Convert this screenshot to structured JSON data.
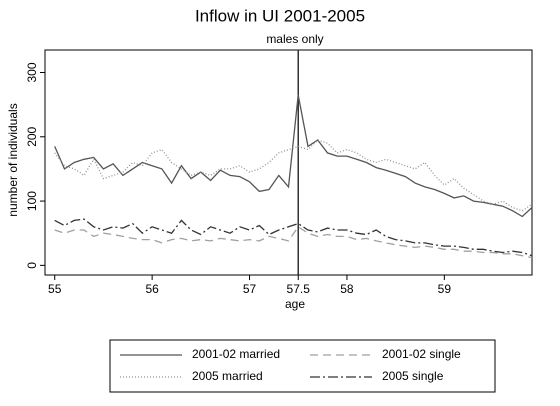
{
  "chart_data": {
    "type": "line",
    "title": "Inflow in UI 2001-2005",
    "subtitle": "males only",
    "x_label": "age",
    "y_label": "number of individuals",
    "x": [
      55.0,
      55.1,
      55.2,
      55.3,
      55.4,
      55.5,
      55.6,
      55.7,
      55.8,
      55.9,
      56.0,
      56.1,
      56.2,
      56.3,
      56.4,
      56.5,
      56.6,
      56.7,
      56.8,
      56.9,
      57.0,
      57.1,
      57.2,
      57.3,
      57.4,
      57.5,
      57.6,
      57.7,
      57.8,
      57.9,
      58.0,
      58.1,
      58.2,
      58.3,
      58.4,
      58.5,
      58.6,
      58.7,
      58.8,
      58.9,
      59.0,
      59.1,
      59.2,
      59.3,
      59.4,
      59.5,
      59.6,
      59.7,
      59.8,
      59.9
    ],
    "series": [
      {
        "name": "2001-02 married",
        "color": "#555555",
        "dash": "none",
        "values": [
          185,
          150,
          160,
          165,
          168,
          150,
          158,
          140,
          150,
          160,
          155,
          150,
          128,
          155,
          135,
          145,
          132,
          148,
          140,
          138,
          130,
          115,
          118,
          140,
          122,
          265,
          185,
          195,
          175,
          170,
          170,
          165,
          160,
          152,
          148,
          143,
          138,
          128,
          122,
          118,
          112,
          105,
          108,
          100,
          98,
          95,
          92,
          85,
          76,
          90
        ]
      },
      {
        "name": "2001-02 single",
        "color": "#a0a0a0",
        "dash": "8,5",
        "values": [
          55,
          50,
          55,
          55,
          45,
          50,
          48,
          45,
          42,
          40,
          40,
          35,
          40,
          42,
          38,
          40,
          38,
          42,
          40,
          38,
          40,
          38,
          45,
          42,
          38,
          60,
          50,
          45,
          48,
          45,
          45,
          40,
          42,
          38,
          35,
          32,
          30,
          28,
          30,
          28,
          25,
          25,
          22,
          22,
          20,
          20,
          18,
          18,
          15,
          12
        ]
      },
      {
        "name": "2005 married",
        "color": "#909090",
        "dash": "1,2",
        "values": [
          175,
          155,
          150,
          140,
          165,
          135,
          140,
          145,
          160,
          155,
          175,
          180,
          160,
          150,
          140,
          145,
          140,
          150,
          150,
          155,
          145,
          150,
          160,
          175,
          180,
          185,
          180,
          195,
          190,
          175,
          180,
          175,
          165,
          160,
          165,
          160,
          155,
          150,
          160,
          140,
          125,
          135,
          120,
          110,
          100,
          95,
          100,
          90,
          85,
          95
        ]
      },
      {
        "name": "2005 single",
        "color": "#333333",
        "dash": "10,3,2,3",
        "values": [
          70,
          62,
          70,
          72,
          60,
          55,
          60,
          58,
          65,
          50,
          60,
          55,
          50,
          70,
          55,
          48,
          60,
          55,
          50,
          60,
          55,
          62,
          48,
          55,
          60,
          65,
          55,
          52,
          58,
          55,
          55,
          50,
          48,
          55,
          45,
          40,
          38,
          35,
          35,
          32,
          30,
          30,
          28,
          25,
          25,
          22,
          20,
          22,
          20,
          15
        ]
      }
    ],
    "xlim": [
      54.9,
      59.9
    ],
    "ylim": [
      -15,
      335
    ],
    "xticks": [
      55,
      56,
      57,
      57.5,
      58,
      59
    ],
    "yticks": [
      0,
      100,
      200,
      300
    ],
    "xline": 57.5,
    "legend": "bottom"
  }
}
